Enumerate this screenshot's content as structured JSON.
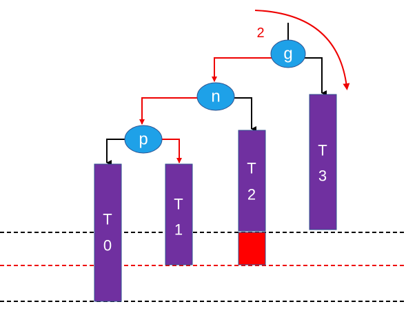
{
  "nodes": [
    {
      "label": "g"
    },
    {
      "label": "n"
    },
    {
      "label": "p"
    }
  ],
  "subtrees": [
    {
      "lines": [
        "T",
        "0"
      ]
    },
    {
      "lines": [
        "T",
        "1"
      ]
    },
    {
      "lines": [
        "T",
        "2"
      ]
    },
    {
      "lines": [
        "T",
        "3"
      ]
    }
  ],
  "rotation_label": "2"
}
